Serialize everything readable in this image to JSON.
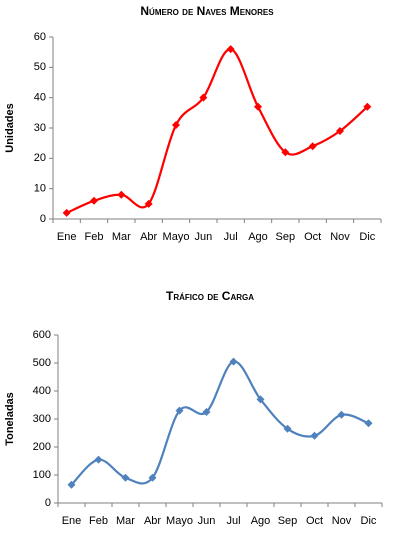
{
  "chart_data": [
    {
      "type": "line",
      "title": "Número de Naves Menores",
      "y_label": "Unidades",
      "categories": [
        "Ene",
        "Feb",
        "Mar",
        "Abr",
        "Mayo",
        "Jun",
        "Jul",
        "Ago",
        "Sep",
        "Oct",
        "Nov",
        "Dic"
      ],
      "series": [
        {
          "color": "#ff0000",
          "values": [
            2,
            6,
            8,
            5,
            31,
            40,
            56,
            37,
            22,
            24,
            29,
            37
          ]
        }
      ],
      "ylim": [
        0,
        60
      ],
      "yticks": [
        0,
        10,
        20,
        30,
        40,
        50,
        60
      ],
      "smooth": true,
      "grid": false
    },
    {
      "type": "line",
      "title": "Tráfico de Carga",
      "y_label": "Toneladas",
      "categories": [
        "Ene",
        "Feb",
        "Mar",
        "Abr",
        "Mayo",
        "Jun",
        "Jul",
        "Ago",
        "Sep",
        "Oct",
        "Nov",
        "Dic"
      ],
      "series": [
        {
          "color": "#4f81bd",
          "values": [
            65,
            155,
            90,
            90,
            330,
            325,
            505,
            370,
            265,
            240,
            315,
            285
          ]
        }
      ],
      "ylim": [
        0,
        600
      ],
      "yticks": [
        0,
        100,
        200,
        300,
        400,
        500,
        600
      ],
      "smooth": true,
      "grid": false
    }
  ]
}
